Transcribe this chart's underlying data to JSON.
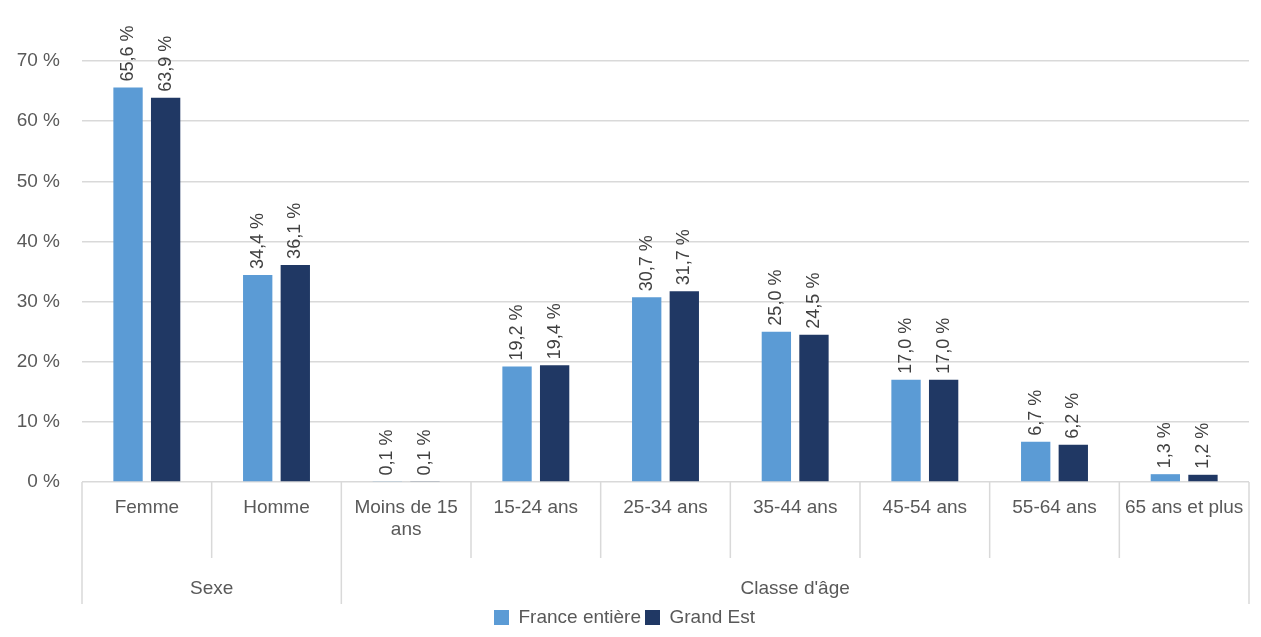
{
  "chart_data": {
    "type": "bar",
    "categories": [
      "Femme",
      "Homme",
      "Moins de 15 ans",
      "15-24 ans",
      "25-34 ans",
      "35-44 ans",
      "45-54 ans",
      "55-64 ans",
      "65 ans et plus"
    ],
    "series": [
      {
        "name": "France entière",
        "color": "#5b9bd5",
        "values": [
          65.6,
          34.4,
          0.1,
          19.2,
          30.7,
          25.0,
          17.0,
          6.7,
          1.3
        ],
        "value_labels": [
          "65,6 %",
          "34,4 %",
          "0,1 %",
          "19,2 %",
          "30,7 %",
          "25,0 %",
          "17,0 %",
          "6,7 %",
          "1,3 %"
        ]
      },
      {
        "name": "Grand Est",
        "color": "#203864",
        "values": [
          63.9,
          36.1,
          0.1,
          19.4,
          31.7,
          24.5,
          17.0,
          6.2,
          1.2
        ],
        "value_labels": [
          "63,9 %",
          "36,1 %",
          "0,1 %",
          "19,4 %",
          "31,7 %",
          "24,5 %",
          "17,0 %",
          "6,2 %",
          "1,2 %"
        ]
      }
    ],
    "annotations": [
      "Sexe",
      "Classe d'âge"
    ],
    "ylim": [
      0,
      70
    ],
    "yticks": [
      {
        "value": 0,
        "label": "0 %"
      },
      {
        "value": 10,
        "label": "10 %"
      },
      {
        "value": 20,
        "label": "20 %"
      },
      {
        "value": 30,
        "label": "30 %"
      },
      {
        "value": 40,
        "label": "40 %"
      },
      {
        "value": 50,
        "label": "50 %"
      },
      {
        "value": 60,
        "label": "60 %"
      },
      {
        "value": 70,
        "label": "70 %"
      }
    ],
    "grid": "y",
    "legend": "bottom"
  }
}
